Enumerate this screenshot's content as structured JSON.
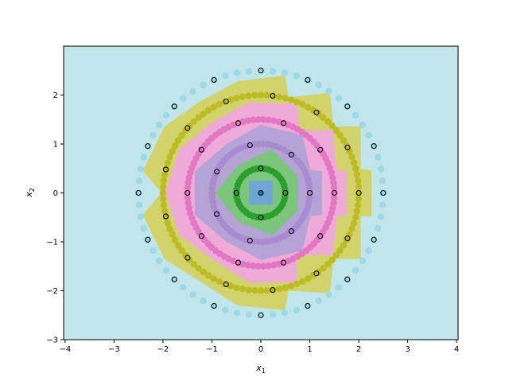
{
  "chart_data": {
    "type": "scatter",
    "title": "",
    "xlabel": "x",
    "xlabel_sub": "1",
    "ylabel": "x",
    "ylabel_sub": "2",
    "xlim": [
      -4.03,
      4.03
    ],
    "ylim": [
      -3,
      3
    ],
    "xticks": [
      -4,
      -3,
      -2,
      -1,
      0,
      1,
      2,
      3,
      4
    ],
    "yticks": [
      -3,
      -2,
      -1,
      0,
      1,
      2
    ],
    "grid": false,
    "background_color": "#c0e5eb",
    "rings": [
      {
        "radius": 0.0,
        "color": "#1f77b4",
        "dense_points": 1,
        "marker_points": 1
      },
      {
        "radius": 0.5,
        "color": "#2ca02c",
        "dense_points": 40,
        "marker_points": 4
      },
      {
        "radius": 1.0,
        "color": "#a98bd0",
        "dense_points": 70,
        "marker_points": 7
      },
      {
        "radius": 1.5,
        "color": "#e377c2",
        "dense_points": 90,
        "marker_points": 10
      },
      {
        "radius": 2.0,
        "color": "#bcbd22",
        "dense_points": 100,
        "marker_points": 13
      },
      {
        "radius": 2.5,
        "color": "#9edae5",
        "dense_points": 64,
        "marker_points": 16
      }
    ],
    "regions": [
      {
        "class": 4,
        "color": "#d3d36c",
        "vertices": [
          [
            -0.48,
            2.28
          ],
          [
            0.49,
            2.4
          ],
          [
            0.57,
            1.95
          ],
          [
            1.41,
            2.05
          ],
          [
            1.49,
            1.36
          ],
          [
            2.04,
            1.36
          ],
          [
            2.04,
            0.49
          ],
          [
            2.26,
            0.46
          ],
          [
            2.26,
            -0.48
          ],
          [
            2.04,
            -0.48
          ],
          [
            2.04,
            -1.35
          ],
          [
            1.49,
            -1.35
          ],
          [
            1.41,
            -2.05
          ],
          [
            0.57,
            -2.0
          ],
          [
            0.49,
            -2.4
          ],
          [
            -0.48,
            -2.3
          ],
          [
            -1.24,
            -1.81
          ],
          [
            -1.97,
            -1.35
          ],
          [
            -2.41,
            -0.45
          ],
          [
            -2.03,
            0
          ],
          [
            -2.41,
            0.45
          ],
          [
            -1.97,
            1.36
          ],
          [
            -1.24,
            1.87
          ]
        ]
      },
      {
        "class": 3,
        "color": "#eeaad8",
        "vertices": [
          [
            -0.24,
            1.85
          ],
          [
            0.74,
            1.82
          ],
          [
            0.79,
            1.28
          ],
          [
            1.47,
            1.28
          ],
          [
            1.55,
            0.47
          ],
          [
            1.76,
            0.44
          ],
          [
            1.76,
            -0.45
          ],
          [
            1.55,
            -0.48
          ],
          [
            1.47,
            -1.27
          ],
          [
            0.74,
            -1.27
          ],
          [
            0.74,
            -1.83
          ],
          [
            -0.24,
            -1.83
          ],
          [
            -1.0,
            -1.35
          ],
          [
            -1.67,
            -0.86
          ],
          [
            -1.95,
            0
          ],
          [
            -1.67,
            0.88
          ],
          [
            -1.0,
            1.44
          ]
        ]
      },
      {
        "class": 2,
        "color": "#b6a3d6",
        "vertices": [
          [
            0,
            1.39
          ],
          [
            0.85,
            1.18
          ],
          [
            1.01,
            0.47
          ],
          [
            1.25,
            0.44
          ],
          [
            1.25,
            -0.45
          ],
          [
            1.01,
            -0.48
          ],
          [
            0.85,
            -1.18
          ],
          [
            0,
            -1.37
          ],
          [
            -0.7,
            -1.0
          ],
          [
            -1.35,
            -0.45
          ],
          [
            -1.35,
            0.44
          ],
          [
            -0.7,
            1.0
          ]
        ]
      },
      {
        "class": 1,
        "color": "#7cc67c",
        "vertices": [
          [
            0.22,
            0.89
          ],
          [
            0.75,
            0.36
          ],
          [
            0.75,
            -0.36
          ],
          [
            0.24,
            -0.86
          ],
          [
            -0.46,
            -0.59
          ],
          [
            -0.93,
            0
          ],
          [
            -0.46,
            0.57
          ]
        ]
      },
      {
        "class": 0,
        "color": "#6fa6d6",
        "vertices": [
          [
            -0.24,
            0.25
          ],
          [
            0.24,
            0.25
          ],
          [
            0.24,
            -0.24
          ],
          [
            -0.24,
            -0.24
          ]
        ]
      }
    ]
  }
}
